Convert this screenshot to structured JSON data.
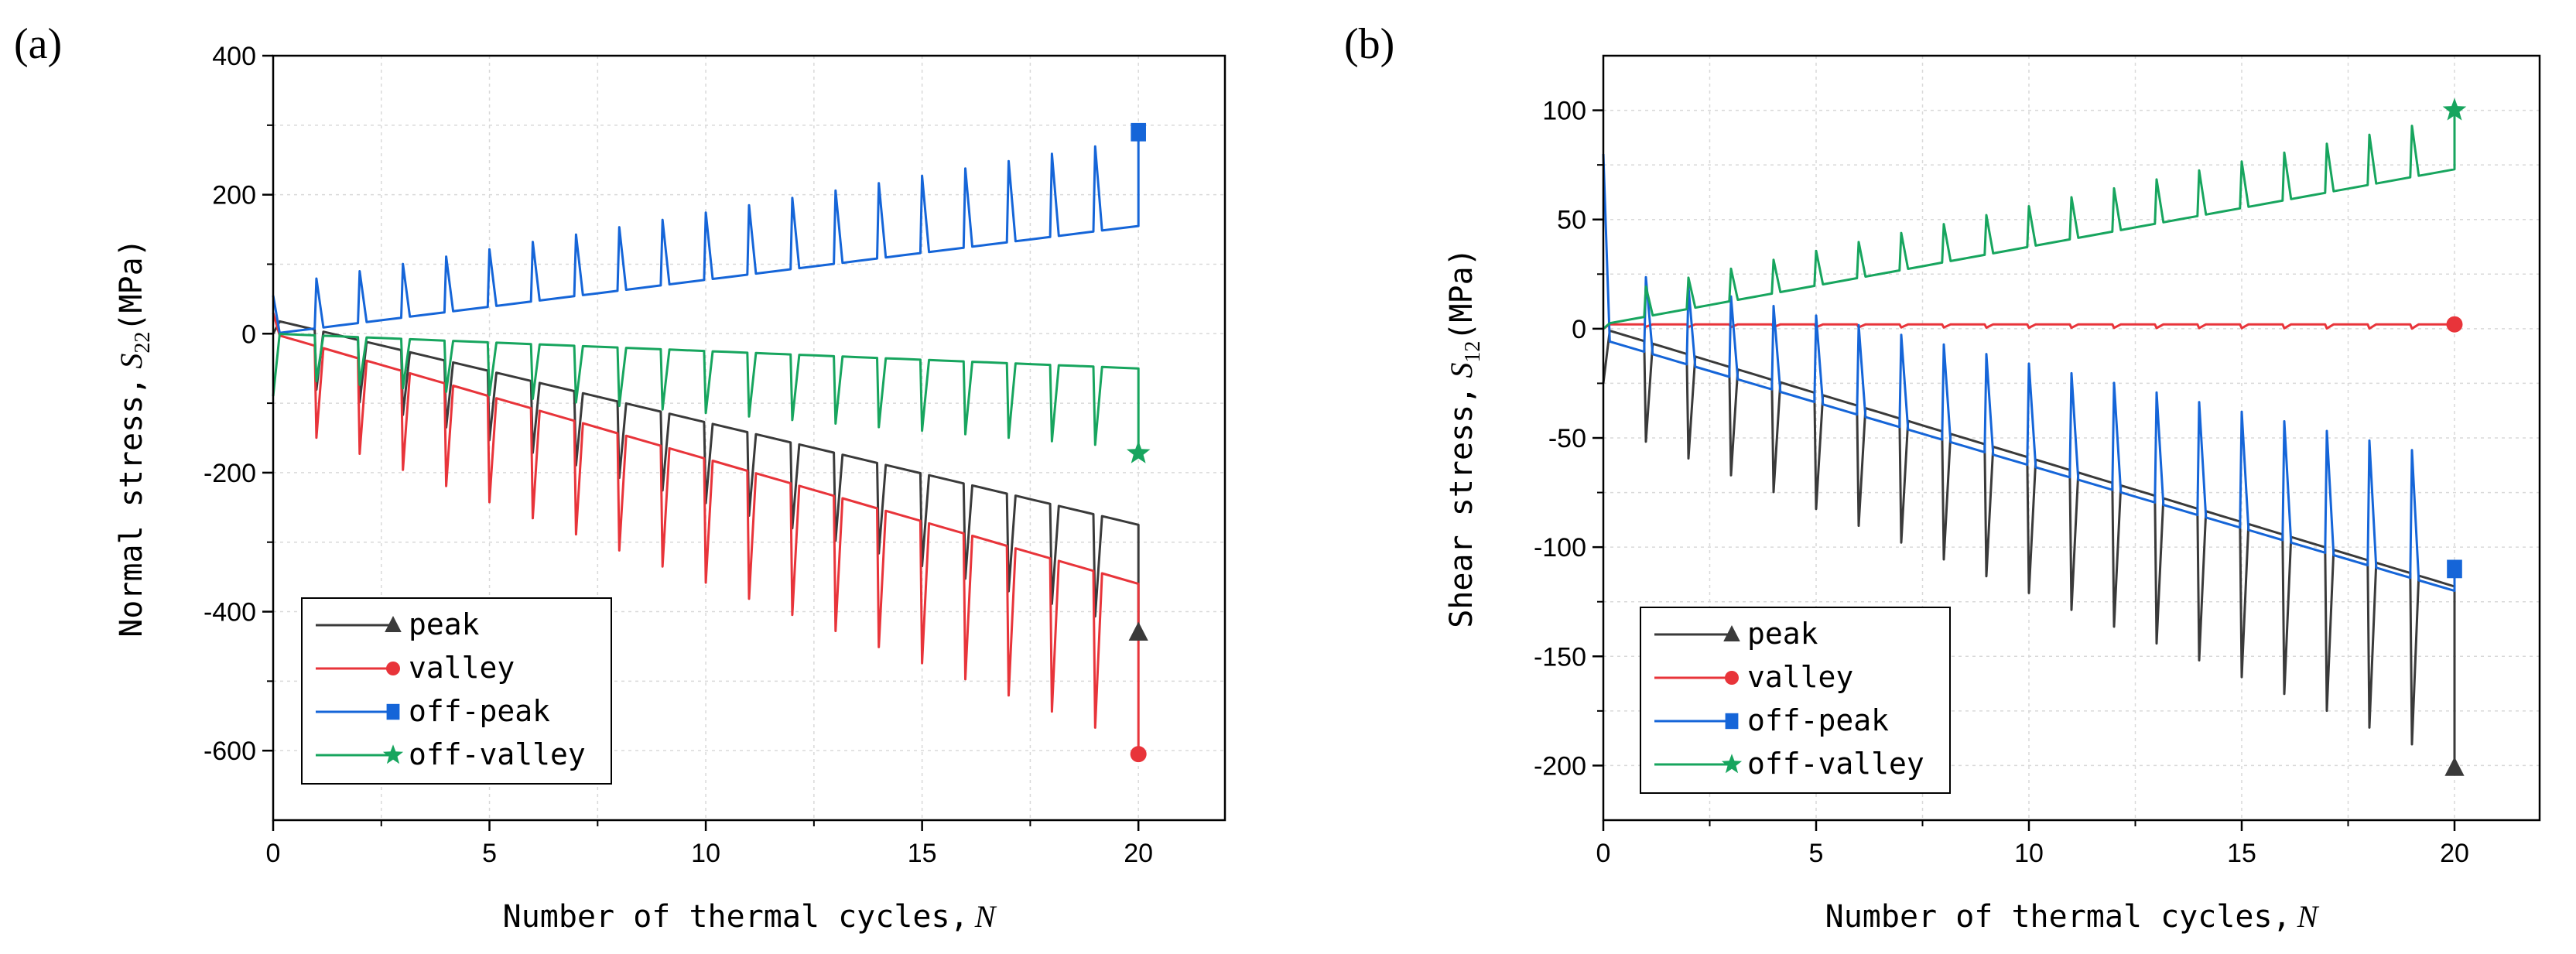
{
  "chart_data": [
    {
      "panel": "(a)",
      "type": "line",
      "xlabel": "Number of thermal cycles,",
      "xlabel_symbol": "N",
      "ylabel": "Normal stress,",
      "ylabel_symbol": "S",
      "ylabel_sub": "22",
      "ylabel_unit": "(MPa)",
      "xlim": [
        0,
        22
      ],
      "ylim": [
        -700,
        400
      ],
      "xticks": [
        0,
        5,
        10,
        15,
        20
      ],
      "yticks": [
        -600,
        -400,
        -200,
        0,
        200,
        400
      ],
      "xtick_labels": [
        "0",
        "5",
        "10",
        "15",
        "20"
      ],
      "ytick_labels": [
        "-600",
        "-400",
        "-200",
        "0",
        "200",
        "400"
      ],
      "grid": true,
      "legend_position": "bottom-left",
      "series": [
        {
          "name": "peak",
          "color": "#3a3a3a",
          "marker": "triangle",
          "start": 0,
          "baseline": [
            20,
            -275
          ],
          "spike_rel": -150,
          "end_marker": -430
        },
        {
          "name": "valley",
          "color": "#e8343a",
          "marker": "circle",
          "start": 30,
          "baseline": [
            0,
            -360
          ],
          "spike_rel": -230,
          "end_marker": -605
        },
        {
          "name": "off-peak",
          "color": "#1565d8",
          "marker": "square",
          "start": 55,
          "baseline": [
            0,
            155
          ],
          "spike_rel": 125,
          "end_marker": 290
        },
        {
          "name": "off-valley",
          "color": "#17a55e",
          "marker": "star",
          "start": -90,
          "baseline": [
            0,
            -50
          ],
          "spike_rel": -115,
          "end_marker": -172
        }
      ]
    },
    {
      "panel": "(b)",
      "type": "line",
      "xlabel": "Number of thermal cycles,",
      "xlabel_symbol": "N",
      "ylabel": "Shear stress,",
      "ylabel_symbol": "S",
      "ylabel_sub": "12",
      "ylabel_unit": "(MPa)",
      "xlim": [
        0,
        22
      ],
      "ylim": [
        -225,
        125
      ],
      "xticks": [
        0,
        5,
        10,
        15,
        20
      ],
      "yticks": [
        -200,
        -150,
        -100,
        -50,
        0,
        50,
        100
      ],
      "xtick_labels": [
        "0",
        "5",
        "10",
        "15",
        "20"
      ],
      "ytick_labels": [
        "-200",
        "-150",
        "-100",
        "-50",
        "0",
        "50",
        "100"
      ],
      "grid": true,
      "legend_position": "bottom-left",
      "series": [
        {
          "name": "peak",
          "color": "#3a3a3a",
          "marker": "triangle",
          "start": -25,
          "baseline": [
            0,
            -118
          ],
          "spike_rel": -80,
          "end_marker": -201
        },
        {
          "name": "valley",
          "color": "#e8343a",
          "marker": "circle",
          "start": 0,
          "baseline": [
            2,
            2
          ],
          "spike_rel": -2,
          "end_marker": 2
        },
        {
          "name": "off-peak",
          "color": "#1565d8",
          "marker": "square",
          "start": 80,
          "baseline": [
            -5,
            -120
          ],
          "spike_rel": 60,
          "end_marker": -110
        },
        {
          "name": "off-valley",
          "color": "#17a55e",
          "marker": "star",
          "start": 0,
          "baseline": [
            2,
            73
          ],
          "spike_rel": 24,
          "end_marker": 100
        }
      ]
    }
  ]
}
